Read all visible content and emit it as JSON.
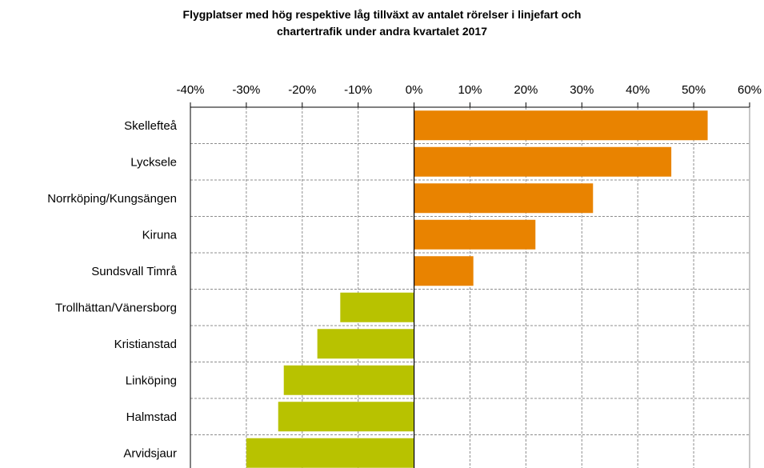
{
  "chart_data": {
    "type": "bar",
    "orientation": "horizontal",
    "title_lines": [
      "Flygplatser med hög respektive låg tillväxt av antalet rörelser i linjefart och",
      "chartertrafik under andra kvartalet 2017"
    ],
    "categories": [
      "Skellefteå",
      "Lycksele",
      "Norrköping/Kungsängen",
      "Kiruna",
      "Sundsvall Timrå",
      "Trollhättan/Vänersborg",
      "Kristianstad",
      "Linköping",
      "Halmstad",
      "Arvidsjaur"
    ],
    "values": [
      52.5,
      46.0,
      32.0,
      21.7,
      10.6,
      -13.2,
      -17.3,
      -23.3,
      -24.3,
      -30.0
    ],
    "unit": "%",
    "xlim": [
      -40,
      60
    ],
    "xticks": [
      -40,
      -30,
      -20,
      -10,
      0,
      10,
      20,
      30,
      40,
      50,
      60
    ],
    "xtick_labels": [
      "-40%",
      "-30%",
      "-20%",
      "-10%",
      "0%",
      "10%",
      "20%",
      "30%",
      "40%",
      "50%",
      "60%"
    ],
    "xaxis_position": "top",
    "grid": true,
    "colors": {
      "positive": "#E98300",
      "negative": "#B8C200",
      "grid": "#8c8c8c",
      "axis": "#000000"
    }
  }
}
